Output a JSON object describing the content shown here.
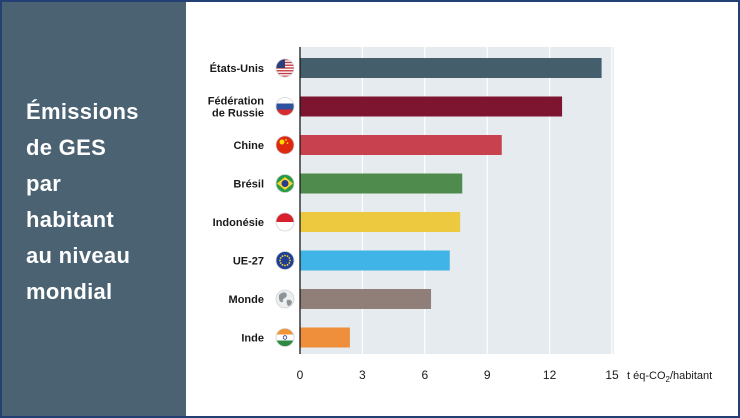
{
  "panel": {
    "title_lines": [
      "Émissions",
      "de GES",
      "par",
      "habitant",
      "au niveau",
      "mondial"
    ]
  },
  "chart_data": {
    "type": "bar",
    "orientation": "horizontal",
    "categories": [
      "États-Unis",
      "Fédération de Russie",
      "Chine",
      "Brésil",
      "Indonésie",
      "UE-27",
      "Monde",
      "Inde"
    ],
    "category_lines": [
      [
        "États-Unis"
      ],
      [
        "Fédération",
        "de Russie"
      ],
      [
        "Chine"
      ],
      [
        "Brésil"
      ],
      [
        "Indonésie"
      ],
      [
        "UE-27"
      ],
      [
        "Monde"
      ],
      [
        "Inde"
      ]
    ],
    "values": [
      14.5,
      12.6,
      9.7,
      7.8,
      7.7,
      7.2,
      6.3,
      2.4
    ],
    "bar_colors": [
      "#445e6b",
      "#7d1530",
      "#c8414f",
      "#4f8b4d",
      "#ecc93e",
      "#40b4e6",
      "#8f7f78",
      "#ef8f3b"
    ],
    "flag_icons": [
      "us-flag-icon",
      "russia-flag-icon",
      "china-flag-icon",
      "brazil-flag-icon",
      "indonesia-flag-icon",
      "eu-flag-icon",
      "globe-icon",
      "india-flag-icon"
    ],
    "xlim": [
      0,
      15
    ],
    "xticks": [
      0,
      3,
      6,
      9,
      12,
      15
    ],
    "xlabel_main": "t éq-CO",
    "xlabel_sub": "2",
    "xlabel_tail": "/habitant",
    "grid": true,
    "plot_background": "#e6ebef",
    "grid_color": "#ffffff"
  }
}
